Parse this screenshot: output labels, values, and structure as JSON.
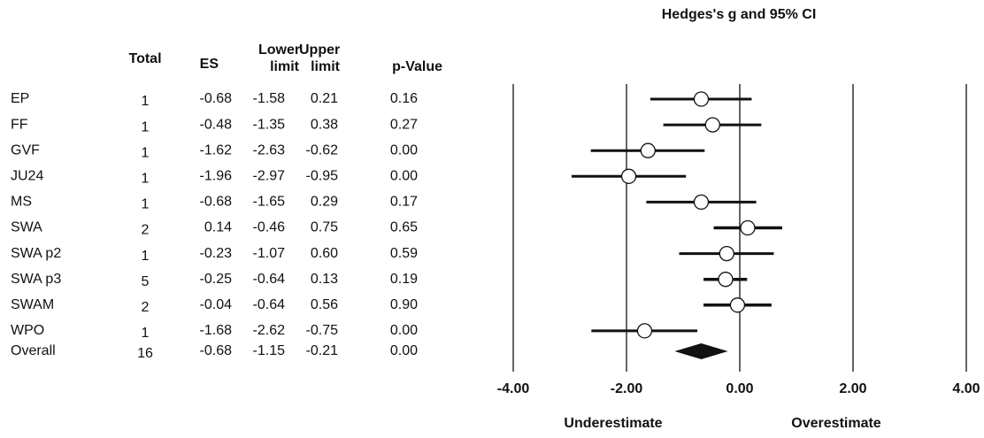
{
  "chart_data": {
    "type": "forest",
    "title": "Hedges's g and 95% CI",
    "columns": [
      "Total",
      "ES",
      "Lower limit",
      "Upper limit",
      "p-Value"
    ],
    "categories": [
      "EP",
      "FF",
      "GVF",
      "JU24",
      "MS",
      "SWA",
      "SWA p2",
      "SWA p3",
      "SWAM",
      "WPO",
      "Overall"
    ],
    "totals": [
      1,
      1,
      1,
      1,
      1,
      2,
      1,
      5,
      2,
      1,
      16
    ],
    "es": [
      -0.68,
      -0.48,
      -1.62,
      -1.96,
      -0.68,
      0.14,
      -0.23,
      -0.25,
      -0.04,
      -1.68,
      -0.68
    ],
    "es_labels": [
      "-0.68",
      "-0.48",
      "-1.62",
      "-1.96",
      "-0.68",
      "0.14",
      "-0.23",
      "-0.25",
      "-0.04",
      "-1.68",
      "-0.68"
    ],
    "lower": [
      -1.58,
      -1.35,
      -2.63,
      -2.97,
      -1.65,
      -0.46,
      -1.07,
      -0.64,
      -0.64,
      -2.62,
      -1.15
    ],
    "lower_labels": [
      "-1.58",
      "-1.35",
      "-2.63",
      "-2.97",
      "-1.65",
      "-0.46",
      "-1.07",
      "-0.64",
      "-0.64",
      "-2.62",
      "-1.15"
    ],
    "upper": [
      0.21,
      0.38,
      -0.62,
      -0.95,
      0.29,
      0.75,
      0.6,
      0.13,
      0.56,
      -0.75,
      -0.21
    ],
    "upper_labels": [
      "0.21",
      "0.38",
      "-0.62",
      "-0.95",
      "0.29",
      "0.75",
      "0.60",
      "0.13",
      "0.56",
      "-0.75",
      "-0.21"
    ],
    "p_values": [
      "0.16",
      "0.27",
      "0.00",
      "0.00",
      "0.17",
      "0.65",
      "0.59",
      "0.19",
      "0.90",
      "0.00",
      "0.00"
    ],
    "xlim": [
      -4,
      4
    ],
    "xticks": [
      {
        "value": -4,
        "label": "-4.00"
      },
      {
        "value": -2,
        "label": "-2.00"
      },
      {
        "value": 0,
        "label": "0.00"
      },
      {
        "value": 2,
        "label": "2.00"
      },
      {
        "value": 4,
        "label": "4.00"
      }
    ],
    "grid": true,
    "left_label": "Underestimate",
    "right_label": "Overestimate"
  }
}
